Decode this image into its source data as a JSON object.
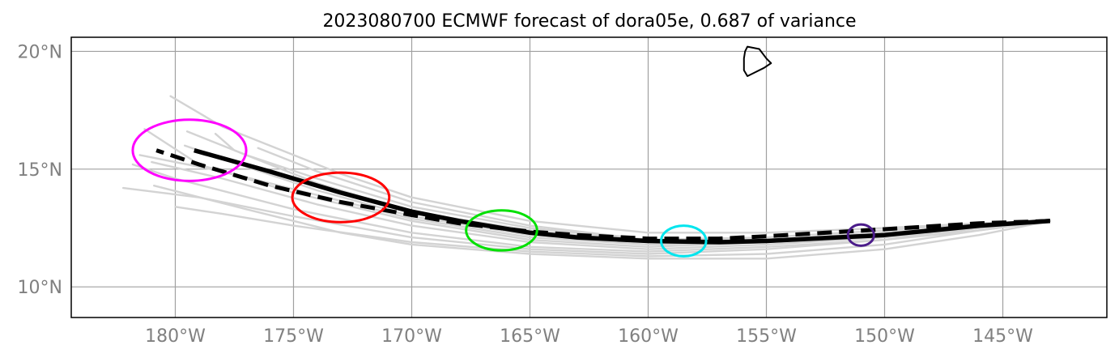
{
  "title": "2023080700 ECMWF forecast of dora05e, 0.687 of variance",
  "axes": {
    "lon_ticks": [
      {
        "value": -180,
        "label": "180°W"
      },
      {
        "value": -175,
        "label": "175°W"
      },
      {
        "value": -170,
        "label": "170°W"
      },
      {
        "value": -165,
        "label": "165°W"
      },
      {
        "value": -160,
        "label": "160°W"
      },
      {
        "value": -155,
        "label": "155°W"
      },
      {
        "value": -150,
        "label": "150°W"
      },
      {
        "value": -145,
        "label": "145°W"
      }
    ],
    "lat_ticks": [
      {
        "value": 10,
        "label": "10°N"
      },
      {
        "value": 15,
        "label": "15°N"
      },
      {
        "value": 20,
        "label": "20°N"
      }
    ],
    "lon_range": [
      -184.4,
      -140.6
    ],
    "lat_range": [
      8.7,
      20.6
    ],
    "grid": true
  },
  "colors": {
    "ensemble": "#d3d3d3",
    "track": "#000000",
    "coast": "#000000",
    "ellipses": [
      "#ff00ff",
      "#ff0000",
      "#00e000",
      "#00e5ee",
      "#4b1c8a"
    ]
  },
  "chart_data": {
    "type": "map-track",
    "ensemble_tracks": [
      [
        [
          -143.0,
          12.8
        ],
        [
          -146,
          12.6
        ],
        [
          -150,
          12.3
        ],
        [
          -155,
          12.0
        ],
        [
          -160,
          11.9
        ],
        [
          -165,
          12.2
        ],
        [
          -170,
          13.0
        ],
        [
          -174,
          14.1
        ],
        [
          -177,
          15.1
        ],
        [
          -179.6,
          16.0
        ]
      ],
      [
        [
          -143.0,
          12.8
        ],
        [
          -146,
          12.7
        ],
        [
          -150,
          12.4
        ],
        [
          -155,
          12.1
        ],
        [
          -160,
          12.0
        ],
        [
          -165,
          12.5
        ],
        [
          -170,
          13.4
        ],
        [
          -174,
          14.6
        ],
        [
          -177,
          15.6
        ],
        [
          -179.5,
          16.6
        ]
      ],
      [
        [
          -143.0,
          12.8
        ],
        [
          -146,
          12.5
        ],
        [
          -150,
          12.1
        ],
        [
          -155,
          11.8
        ],
        [
          -160,
          11.6
        ],
        [
          -165,
          11.9
        ],
        [
          -170,
          12.6
        ],
        [
          -174,
          13.5
        ],
        [
          -178,
          14.6
        ],
        [
          -181,
          15.3
        ]
      ],
      [
        [
          -143.0,
          12.8
        ],
        [
          -146,
          12.5
        ],
        [
          -150,
          12.0
        ],
        [
          -155,
          11.6
        ],
        [
          -160,
          11.4
        ],
        [
          -165,
          11.6
        ],
        [
          -170,
          12.1
        ],
        [
          -175,
          13.0
        ],
        [
          -179,
          13.8
        ],
        [
          -182.2,
          14.2
        ]
      ],
      [
        [
          -143.0,
          12.8
        ],
        [
          -146,
          12.4
        ],
        [
          -150,
          11.8
        ],
        [
          -155,
          11.4
        ],
        [
          -160,
          11.3
        ],
        [
          -165,
          11.5
        ],
        [
          -170,
          11.9
        ],
        [
          -175,
          12.6
        ],
        [
          -178,
          13.1
        ],
        [
          -180,
          13.4
        ]
      ],
      [
        [
          -143.0,
          12.8
        ],
        [
          -146,
          12.2
        ],
        [
          -150,
          11.6
        ],
        [
          -155,
          11.2
        ],
        [
          -160,
          11.2
        ],
        [
          -165,
          11.4
        ],
        [
          -170,
          11.8
        ],
        [
          -173,
          12.3
        ],
        [
          -177,
          13.3
        ],
        [
          -180.9,
          14.3
        ]
      ],
      [
        [
          -143.0,
          12.8
        ],
        [
          -146,
          12.7
        ],
        [
          -150,
          12.5
        ],
        [
          -155,
          12.3
        ],
        [
          -160,
          12.3
        ],
        [
          -165,
          12.8
        ],
        [
          -170,
          13.8
        ],
        [
          -173,
          14.8
        ],
        [
          -176,
          16.0
        ],
        [
          -178,
          16.8
        ],
        [
          -180.2,
          18.1
        ]
      ],
      [
        [
          -143.0,
          12.8
        ],
        [
          -146,
          12.6
        ],
        [
          -150,
          12.2
        ],
        [
          -155,
          11.9
        ],
        [
          -160,
          11.8
        ],
        [
          -165,
          12.1
        ],
        [
          -170,
          12.9
        ],
        [
          -174,
          13.9
        ],
        [
          -178,
          14.9
        ],
        [
          -181.5,
          15.6
        ]
      ],
      [
        [
          -143.0,
          12.8
        ],
        [
          -146,
          12.6
        ],
        [
          -150,
          12.3
        ],
        [
          -155,
          12.0
        ],
        [
          -160,
          11.9
        ],
        [
          -165,
          12.4
        ],
        [
          -170,
          13.2
        ],
        [
          -174,
          14.4
        ],
        [
          -177.5,
          15.8
        ],
        [
          -178.3,
          16.5
        ]
      ],
      [
        [
          -143.0,
          12.8
        ],
        [
          -146,
          12.5
        ],
        [
          -150,
          12.2
        ],
        [
          -155,
          11.9
        ],
        [
          -160,
          11.7
        ],
        [
          -165,
          12.0
        ],
        [
          -170,
          12.8
        ],
        [
          -175,
          14.0
        ],
        [
          -179,
          15.2
        ],
        [
          -181.3,
          16.7
        ]
      ],
      [
        [
          -143.0,
          12.8
        ],
        [
          -146,
          12.6
        ],
        [
          -150,
          12.3
        ],
        [
          -155,
          12.0
        ],
        [
          -160,
          12.0
        ],
        [
          -165,
          12.6
        ],
        [
          -170,
          13.6
        ],
        [
          -174,
          14.9
        ],
        [
          -176.5,
          15.9
        ]
      ],
      [
        [
          -143.0,
          12.8
        ],
        [
          -146,
          12.4
        ],
        [
          -150,
          12.0
        ],
        [
          -155,
          11.7
        ],
        [
          -160,
          11.5
        ],
        [
          -165,
          11.7
        ],
        [
          -170,
          12.3
        ],
        [
          -175,
          13.3
        ],
        [
          -180,
          14.6
        ],
        [
          -181.8,
          15.2
        ]
      ]
    ],
    "forecast_track": [
      [
        -143.0,
        12.8
      ],
      [
        -146,
        12.6
      ],
      [
        -150,
        12.2
      ],
      [
        -155,
        11.95
      ],
      [
        -157,
        11.9
      ],
      [
        -160,
        11.95
      ],
      [
        -163,
        12.1
      ],
      [
        -165,
        12.3
      ],
      [
        -168,
        12.8
      ],
      [
        -170,
        13.2
      ],
      [
        -173,
        14.0
      ],
      [
        -176,
        14.9
      ],
      [
        -179.2,
        15.8
      ]
    ],
    "verifying_track": [
      [
        -143.0,
        12.8
      ],
      [
        -146,
        12.7
      ],
      [
        -150,
        12.45
      ],
      [
        -155,
        12.15
      ],
      [
        -157,
        12.05
      ],
      [
        -160,
        12.05
      ],
      [
        -163,
        12.2
      ],
      [
        -165,
        12.35
      ],
      [
        -168,
        12.7
      ],
      [
        -170,
        13.05
      ],
      [
        -173,
        13.6
      ],
      [
        -176,
        14.3
      ],
      [
        -179,
        15.2
      ],
      [
        -180.8,
        15.8
      ]
    ],
    "ellipses": [
      {
        "lon": -179.4,
        "lat": 15.8,
        "rx_deg": 2.4,
        "ry_deg": 1.3,
        "color": "#ff00ff"
      },
      {
        "lon": -173.0,
        "lat": 13.8,
        "rx_deg": 2.05,
        "ry_deg": 1.05,
        "color": "#ff0000"
      },
      {
        "lon": -166.2,
        "lat": 12.4,
        "rx_deg": 1.5,
        "ry_deg": 0.85,
        "color": "#00e000"
      },
      {
        "lon": -158.5,
        "lat": 11.95,
        "rx_deg": 0.95,
        "ry_deg": 0.65,
        "color": "#00e5ee"
      },
      {
        "lon": -151.0,
        "lat": 12.2,
        "rx_deg": 0.55,
        "ry_deg": 0.45,
        "color": "#4b1c8a"
      }
    ],
    "island_outline": [
      [
        -155.8,
        20.2
      ],
      [
        -155.3,
        20.1
      ],
      [
        -155.0,
        19.7
      ],
      [
        -154.8,
        19.5
      ],
      [
        -155.1,
        19.3
      ],
      [
        -155.5,
        19.1
      ],
      [
        -155.8,
        18.95
      ],
      [
        -155.95,
        19.2
      ],
      [
        -155.95,
        19.7
      ],
      [
        -155.9,
        20.0
      ],
      [
        -155.8,
        20.2
      ]
    ]
  }
}
